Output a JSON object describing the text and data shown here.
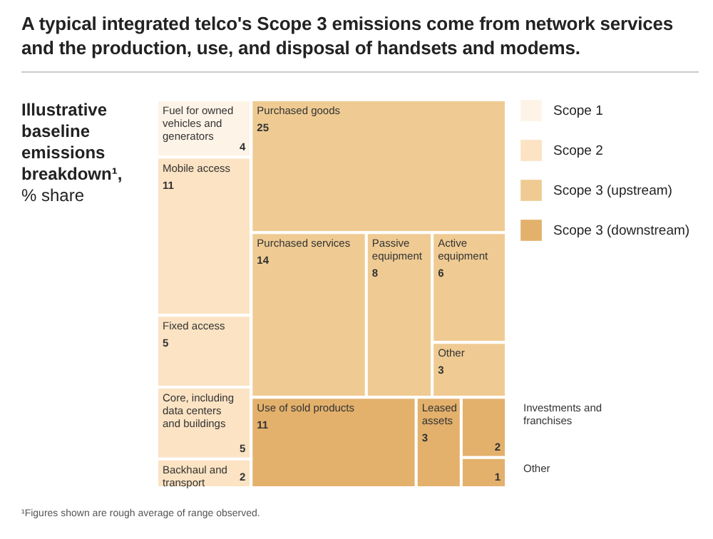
{
  "chart_data": {
    "type": "other",
    "title": "A typical integrated telco's Scope 3 emissions come from network services and the production, use, and disposal of handsets and modems.",
    "subtitle": "Illustrative baseline emissions breakdown¹,",
    "ylabel": "% share",
    "categories": [
      "Fuel for owned vehicles and generators",
      "Mobile access",
      "Fixed access",
      "Core, including data centers and buildings",
      "Backhaul and transport",
      "Purchased goods",
      "Purchased services",
      "Passive equipment",
      "Active equipment",
      "Other",
      "Use of sold products",
      "Leased assets",
      "Investments and franchises",
      "Other"
    ],
    "series": [
      {
        "name": "Scope 1",
        "color": "#fdf3e7",
        "values": [
          4,
          null,
          null,
          null,
          null,
          null,
          null,
          null,
          null,
          null,
          null,
          null,
          null,
          null
        ]
      },
      {
        "name": "Scope 2",
        "color": "#fbe3c3",
        "values": [
          null,
          11,
          5,
          5,
          2,
          null,
          null,
          null,
          null,
          null,
          null,
          null,
          null,
          null
        ]
      },
      {
        "name": "Scope 3 (upstream)",
        "color": "#efcb93",
        "values": [
          null,
          null,
          null,
          null,
          null,
          25,
          14,
          8,
          6,
          3,
          null,
          null,
          null,
          null
        ]
      },
      {
        "name": "Scope 3 (downstream)",
        "color": "#e3b16c",
        "values": [
          null,
          null,
          null,
          null,
          null,
          null,
          null,
          null,
          null,
          null,
          11,
          3,
          2,
          1
        ]
      }
    ],
    "data_labels": true,
    "legend": "right",
    "annotations": [
      "¹Figures shown are rough average of range observed."
    ]
  }
}
